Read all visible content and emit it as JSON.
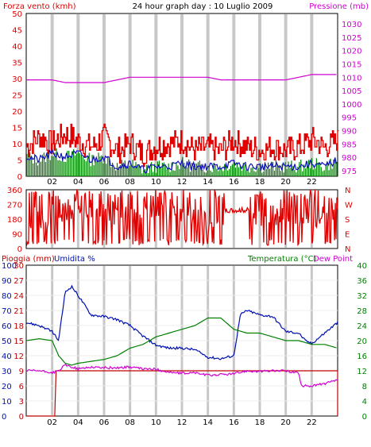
{
  "title": "24 hour graph day : 10 Luglio 2009",
  "colors": {
    "wind": "#e00000",
    "wind_gust": "#e00000",
    "wind_avg": "#1010c0",
    "wind_green": "#008000",
    "pressure": "#d000d0",
    "direction": "#e00000",
    "rain": "#c00000",
    "humidity": "#0010b0",
    "temperature": "#008000",
    "dew_point": "#d000d0",
    "grid": "#c8c8c8",
    "frame": "#000000"
  },
  "panel_wind": {
    "left_label": "Forza vento (kmh)",
    "right_label": "Pressione (mb)",
    "left_ticks": [
      "0",
      "5",
      "10",
      "15",
      "20",
      "25",
      "30",
      "35",
      "40",
      "45",
      "50"
    ],
    "right_ticks": [
      "975",
      "980",
      "985",
      "990",
      "995",
      "1000",
      "1005",
      "1010",
      "1015",
      "1020",
      "1025",
      "1030"
    ],
    "x_ticks": [
      "02",
      "04",
      "06",
      "08",
      "10",
      "12",
      "14",
      "16",
      "18",
      "20",
      "22"
    ]
  },
  "panel_dir": {
    "left_ticks": [
      "0",
      "90",
      "180",
      "270",
      "360"
    ],
    "right_ticks": [
      "N",
      "E",
      "S",
      "W",
      "N"
    ]
  },
  "panel_temp": {
    "left_label_rain": "Pioggia (mm)",
    "left_label_hum": "Umidita %",
    "right_label_temp": "Temperatura (°C)",
    "right_label_dew": "Dew Point",
    "rain_ticks": [
      "0",
      "3",
      "6",
      "9",
      "12",
      "15",
      "18",
      "21",
      "24",
      "27",
      "30"
    ],
    "hum_ticks": [
      "0",
      "10",
      "20",
      "30",
      "40",
      "50",
      "60",
      "70",
      "80",
      "90",
      "100"
    ],
    "temp_ticks": [
      "0",
      "4",
      "8",
      "12",
      "16",
      "20",
      "24",
      "28",
      "32",
      "36",
      "40"
    ],
    "x_ticks": [
      "02",
      "04",
      "06",
      "08",
      "10",
      "12",
      "14",
      "16",
      "18",
      "20",
      "22"
    ]
  },
  "chart_data": [
    {
      "type": "line",
      "title": "24 hour graph day : 10 Luglio 2009",
      "xlabel": "",
      "ylabel": "Forza vento (kmh)",
      "ylabel_right": "Pressione (mb)",
      "xlim": [
        0,
        24
      ],
      "ylim": [
        0,
        50
      ],
      "ylim_right": [
        975,
        1030
      ],
      "grid": true,
      "series": [
        {
          "name": "Pressione (mb)",
          "axis": "right",
          "x": [
            0,
            1,
            1.5,
            2,
            3,
            4,
            5,
            6,
            7,
            8,
            9,
            10,
            11,
            12,
            13,
            14,
            15,
            16,
            17,
            18,
            19,
            20,
            21,
            22,
            23,
            24
          ],
          "values": [
            1009,
            1009,
            1009,
            1009,
            1008,
            1008,
            1008,
            1008,
            1009,
            1010,
            1010,
            1010,
            1010,
            1010,
            1010,
            1010,
            1009,
            1009,
            1009,
            1009,
            1009,
            1009,
            1010,
            1011,
            1011,
            1011
          ]
        },
        {
          "axis": "left",
          "x": [
            0,
            1,
            2,
            3,
            4,
            5,
            6,
            7,
            8,
            9,
            10,
            11,
            12,
            13,
            14,
            15,
            16,
            17,
            18,
            19,
            20,
            21,
            22,
            23,
            24
          ],
          "values": [
            6,
            5,
            7,
            6,
            7,
            5,
            6,
            3,
            4,
            2,
            3,
            3,
            4,
            3,
            3,
            3,
            4,
            3,
            3,
            3,
            3,
            3,
            4,
            3,
            5
          ]
        },
        {
          "axis": "left",
          "x": [
            0,
            1,
            2,
            3,
            4,
            5,
            6,
            7,
            8,
            9,
            10,
            11,
            12,
            13,
            14,
            15,
            16,
            17,
            18,
            19,
            20,
            21,
            22,
            23,
            24
          ],
          "values": [
            9,
            12,
            10,
            13,
            11,
            9,
            12,
            8,
            10,
            7,
            9,
            10,
            11,
            8,
            9,
            8,
            11,
            9,
            8,
            9,
            8,
            9,
            11,
            9,
            11
          ]
        }
      ]
    },
    {
      "type": "line",
      "xlim": [
        0,
        24
      ],
      "ylim": [
        0,
        360
      ],
      "grid": true,
      "series": [
        {
          "axis": "left",
          "x": [
            0,
            2,
            4,
            6,
            8,
            10,
            12,
            14,
            16,
            18,
            20,
            22,
            24
          ],
          "values": [
            180,
            200,
            260,
            230,
            190,
            240,
            210,
            160,
            220,
            200,
            220,
            180,
            260
          ]
        }
      ]
    },
    {
      "type": "line",
      "xlabel": "",
      "ylim": [
        0,
        100
      ],
      "ylim_rain": [
        0,
        30
      ],
      "ylim_temp": [
        0,
        40
      ],
      "xlim": [
        0,
        24
      ],
      "grid": true,
      "series": [
        {
          "name": "Pioggia (mm)",
          "axis": "rain",
          "x": [
            0,
            2.2,
            2.3,
            3,
            6,
            10,
            14,
            18,
            21,
            24
          ],
          "values": [
            0,
            0,
            9,
            9,
            9,
            9,
            9,
            9,
            9,
            9
          ]
        },
        {
          "name": "Umidita %",
          "axis": "hum",
          "x": [
            0,
            1,
            2,
            2.5,
            3,
            3.5,
            4,
            5,
            6,
            7,
            8,
            9,
            10,
            11,
            12,
            13,
            14,
            15,
            16,
            16.5,
            17,
            18,
            19,
            20,
            21,
            21.5,
            22,
            23,
            24
          ],
          "values": [
            62,
            60,
            56,
            50,
            82,
            86,
            80,
            67,
            66,
            64,
            60,
            53,
            47,
            45,
            45,
            44,
            39,
            38,
            40,
            67,
            70,
            67,
            66,
            56,
            55,
            50,
            48,
            55,
            62
          ]
        },
        {
          "name": "Temperatura (°C)",
          "axis": "temp",
          "x": [
            0,
            1,
            2,
            2.5,
            3,
            3.5,
            4,
            5,
            6,
            7,
            8,
            9,
            10,
            11,
            12,
            13,
            14,
            15,
            16,
            17,
            18,
            19,
            20,
            21,
            22,
            23,
            24
          ],
          "values": [
            20,
            20.5,
            20,
            16,
            14,
            13.5,
            14,
            14.5,
            15,
            16,
            18,
            19,
            21,
            22,
            23,
            24,
            26,
            26,
            23,
            22,
            22,
            21,
            20,
            20,
            19,
            19,
            18
          ]
        },
        {
          "name": "Dew Point",
          "axis": "temp",
          "x": [
            0,
            1,
            2,
            2.5,
            3,
            3.5,
            4,
            5,
            6,
            7,
            8,
            9,
            10,
            11,
            12,
            13,
            14,
            15,
            16,
            17,
            18,
            19,
            20,
            21,
            21.2,
            22,
            23,
            24
          ],
          "values": [
            12,
            12,
            11.5,
            12,
            13.5,
            13,
            12.5,
            13,
            12.8,
            12.8,
            13,
            12.5,
            12.4,
            11.6,
            11.3,
            11.5,
            10.8,
            11,
            11.2,
            12,
            11.8,
            12,
            12,
            11.4,
            8,
            8,
            8.6,
            9.5
          ]
        }
      ]
    }
  ]
}
